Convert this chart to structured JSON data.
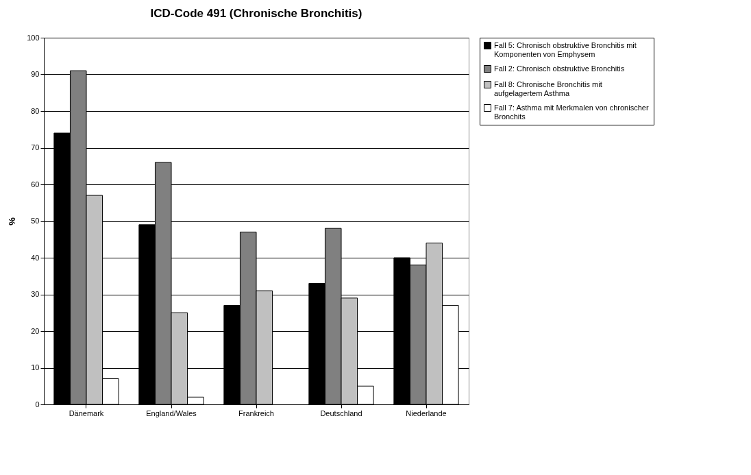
{
  "chart_data": {
    "type": "bar",
    "title": "ICD-Code 491 (Chronische Bronchitis)",
    "ylabel": "%",
    "categories": [
      "Dänemark",
      "England/Wales",
      "Frankreich",
      "Deutschland",
      "Niederlande"
    ],
    "series": [
      {
        "name": "Fall 5: Chronisch obstruktive Bronchitis mit Komponenten von Emphysem",
        "color": "#000000",
        "values": [
          74,
          49,
          27,
          33,
          40
        ]
      },
      {
        "name": "Fall 2: Chronisch obstruktive Bronchitis",
        "color": "#808080",
        "values": [
          91,
          66,
          47,
          48,
          38
        ]
      },
      {
        "name": "Fall 8: Chronische Bronchitis mit aufgelagertem Asthma",
        "color": "#c0c0c0",
        "values": [
          57,
          25,
          31,
          29,
          44
        ]
      },
      {
        "name": "Fall 7: Asthma mit Merkmalen von chronischer Bronchits",
        "color": "#ffffff",
        "values": [
          7,
          2,
          null,
          5,
          27
        ]
      }
    ],
    "ylim": [
      0,
      100
    ],
    "yticks": [
      0,
      10,
      20,
      30,
      40,
      50,
      60,
      70,
      80,
      90,
      100
    ],
    "grid": "y",
    "legend": "right"
  }
}
